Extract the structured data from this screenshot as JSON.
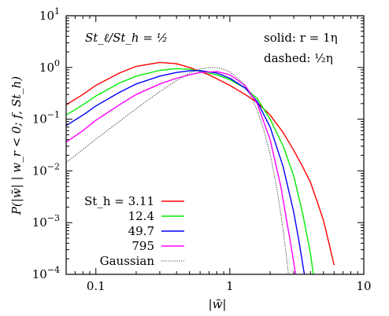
{
  "chart_data": {
    "type": "line",
    "title": "",
    "xlabel": "|w̃|",
    "ylabel": "P(|w̃| | w_r < 0; f, St_h)",
    "xscale": "log",
    "yscale": "log",
    "xlim": [
      0.06,
      10
    ],
    "ylim": [
      0.0001,
      10
    ],
    "x_ticks": [
      {
        "value": 0.1,
        "label": "0.1"
      },
      {
        "value": 1,
        "label": "1"
      },
      {
        "value": 10,
        "label": "10"
      }
    ],
    "y_ticks": [
      {
        "value": 10,
        "label": "10",
        "exp": "1"
      },
      {
        "value": 1,
        "label": "10",
        "exp": "0"
      },
      {
        "value": 0.1,
        "label": "10",
        "exp": "−1"
      },
      {
        "value": 0.01,
        "label": "10",
        "exp": "−2"
      },
      {
        "value": 0.001,
        "label": "10",
        "exp": "−3"
      },
      {
        "value": 0.0001,
        "label": "10",
        "exp": "−4"
      }
    ],
    "annotations": {
      "ratio": "St_ℓ/St_h = ½",
      "solid": "solid:  r = 1η",
      "dashed": "dashed:    ½η"
    },
    "legend_position": "bottom-left",
    "grid": false,
    "series": [
      {
        "name": "St_h = 3.11",
        "color": "#ff0000",
        "x": [
          0.06,
          0.08,
          0.1,
          0.15,
          0.2,
          0.3,
          0.4,
          0.5,
          0.7,
          1.0,
          1.3,
          1.6,
          2.0,
          2.5,
          3.0,
          3.5,
          4.0,
          4.5,
          5.0,
          5.5,
          6.0
        ],
        "y": [
          0.19,
          0.3,
          0.45,
          0.78,
          1.05,
          1.25,
          1.18,
          1.0,
          0.72,
          0.45,
          0.3,
          0.21,
          0.12,
          0.055,
          0.025,
          0.012,
          0.006,
          0.0025,
          0.0011,
          0.0004,
          0.00015
        ]
      },
      {
        "name": "12.4",
        "color": "#00ee00",
        "x": [
          0.06,
          0.08,
          0.1,
          0.15,
          0.2,
          0.3,
          0.4,
          0.5,
          0.6,
          0.8,
          1.0,
          1.3,
          1.6,
          2.0,
          2.5,
          3.0,
          3.5,
          4.0,
          4.2
        ],
        "y": [
          0.12,
          0.19,
          0.28,
          0.5,
          0.68,
          0.88,
          0.95,
          0.92,
          0.85,
          0.72,
          0.58,
          0.4,
          0.25,
          0.1,
          0.03,
          0.008,
          0.0015,
          0.00025,
          0.0001
        ]
      },
      {
        "name": "49.7",
        "color": "#0000ff",
        "x": [
          0.06,
          0.08,
          0.1,
          0.15,
          0.2,
          0.3,
          0.4,
          0.5,
          0.6,
          0.8,
          1.0,
          1.3,
          1.6,
          2.0,
          2.5,
          3.0,
          3.3,
          3.6
        ],
        "y": [
          0.075,
          0.12,
          0.18,
          0.33,
          0.48,
          0.68,
          0.8,
          0.86,
          0.87,
          0.78,
          0.62,
          0.4,
          0.22,
          0.07,
          0.012,
          0.0016,
          0.0004,
          0.0001
        ]
      },
      {
        "name": "795",
        "color": "#ff00ff",
        "x": [
          0.06,
          0.08,
          0.1,
          0.15,
          0.2,
          0.3,
          0.4,
          0.5,
          0.6,
          0.8,
          1.0,
          1.3,
          1.6,
          2.0,
          2.4,
          2.8,
          3.1
        ],
        "y": [
          0.036,
          0.06,
          0.095,
          0.19,
          0.3,
          0.48,
          0.62,
          0.72,
          0.8,
          0.83,
          0.72,
          0.45,
          0.2,
          0.04,
          0.005,
          0.0005,
          0.0001
        ]
      },
      {
        "name": "Gaussian",
        "color": "#444444",
        "dotted": true,
        "x": [
          0.06,
          0.08,
          0.1,
          0.15,
          0.2,
          0.3,
          0.4,
          0.5,
          0.6,
          0.7,
          0.8,
          0.9,
          1.0,
          1.2,
          1.4,
          1.6,
          1.8,
          2.0,
          2.2,
          2.4,
          2.6,
          2.8
        ],
        "y": [
          0.0145,
          0.026,
          0.041,
          0.091,
          0.16,
          0.34,
          0.56,
          0.78,
          0.93,
          1.0,
          0.99,
          0.92,
          0.82,
          0.56,
          0.32,
          0.15,
          0.06,
          0.021,
          0.0061,
          0.0015,
          0.00032,
          6e-05
        ]
      }
    ]
  }
}
